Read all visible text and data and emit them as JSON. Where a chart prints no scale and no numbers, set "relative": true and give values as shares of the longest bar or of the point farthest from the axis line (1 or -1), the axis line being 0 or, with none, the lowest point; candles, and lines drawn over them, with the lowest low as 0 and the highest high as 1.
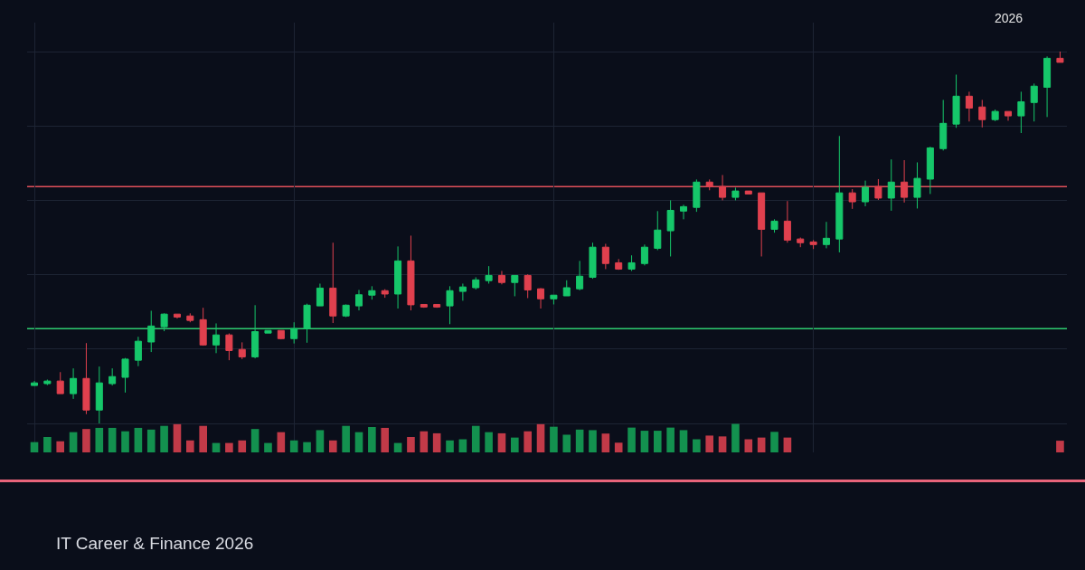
{
  "chart_data": [
    {
      "type": "candlestick",
      "relative": true,
      "grid": true,
      "annotations": [
        "2026",
        "IT Career & Finance 2026"
      ],
      "categories": [
        null,
        null,
        null,
        null,
        null,
        null,
        null,
        null,
        null,
        null,
        null,
        null,
        null,
        null,
        null,
        null,
        null,
        null,
        null,
        null,
        null,
        null,
        null,
        null,
        null,
        null,
        null,
        null,
        null,
        null,
        null,
        null,
        null,
        null,
        null,
        null,
        null,
        null,
        null,
        null,
        null,
        null,
        null,
        null,
        null,
        null,
        null,
        null,
        null,
        null,
        null,
        null,
        null,
        null,
        null,
        null,
        null,
        null,
        null,
        null,
        null,
        null,
        null,
        null,
        null,
        null,
        null,
        null,
        null,
        null,
        null,
        null,
        null,
        null,
        null,
        null,
        null,
        null,
        null,
        null
      ],
      "ohlc": [
        [
          0.102,
          0.114,
          0.101,
          0.109
        ],
        [
          0.107,
          0.118,
          0.103,
          0.114
        ],
        [
          0.114,
          0.138,
          0.08,
          0.08
        ],
        [
          0.08,
          0.148,
          0.066,
          0.121
        ],
        [
          0.121,
          0.216,
          0.025,
          0.036
        ],
        [
          0.036,
          0.153,
          0,
          0.109
        ],
        [
          0.107,
          0.148,
          0.102,
          0.126
        ],
        [
          0.124,
          0.176,
          0.083,
          0.173
        ],
        [
          0.17,
          0.233,
          0.154,
          0.221
        ],
        [
          0.219,
          0.303,
          0.192,
          0.262
        ],
        [
          0.26,
          0.296,
          0.248,
          0.294
        ],
        [
          0.294,
          0.294,
          0.282,
          0.286
        ],
        [
          0.289,
          0.296,
          0.272,
          0.277
        ],
        [
          0.279,
          0.311,
          0.209,
          0.211
        ],
        [
          0.211,
          0.269,
          0.189,
          0.238
        ],
        [
          0.238,
          0.242,
          0.17,
          0.196
        ],
        [
          0.199,
          0.218,
          0.173,
          0.179
        ],
        [
          0.179,
          0.318,
          0.175,
          0.247
        ],
        [
          0.243,
          0.25,
          0.243,
          0.25
        ],
        [
          0.25,
          0.25,
          0.226,
          0.228
        ],
        [
          0.228,
          0.272,
          0.215,
          0.255
        ],
        [
          0.255,
          0.322,
          0.217,
          0.318
        ],
        [
          0.316,
          0.376,
          0.316,
          0.364
        ],
        [
          0.364,
          0.486,
          0.27,
          0.289
        ],
        [
          0.289,
          0.32,
          0.286,
          0.318
        ],
        [
          0.316,
          0.359,
          0.304,
          0.346
        ],
        [
          0.345,
          0.369,
          0.333,
          0.357
        ],
        [
          0.357,
          0.361,
          0.338,
          0.348
        ],
        [
          0.348,
          0.476,
          0.309,
          0.437
        ],
        [
          0.437,
          0.505,
          0.304,
          0.319
        ],
        [
          0.32,
          0.32,
          0.311,
          0.313
        ],
        [
          0.32,
          0.32,
          0.311,
          0.313
        ],
        [
          0.316,
          0.369,
          0.267,
          0.357
        ],
        [
          0.355,
          0.376,
          0.33,
          0.367
        ],
        [
          0.365,
          0.393,
          0.36,
          0.386
        ],
        [
          0.384,
          0.423,
          0.376,
          0.398
        ],
        [
          0.398,
          0.41,
          0.374,
          0.379
        ],
        [
          0.379,
          0.398,
          0.342,
          0.398
        ],
        [
          0.398,
          0.401,
          0.337,
          0.359
        ],
        [
          0.362,
          0.364,
          0.309,
          0.335
        ],
        [
          0.335,
          0.345,
          0.32,
          0.345
        ],
        [
          0.343,
          0.385,
          0.343,
          0.365
        ],
        [
          0.362,
          0.437,
          0.358,
          0.396
        ],
        [
          0.393,
          0.486,
          0.389,
          0.474
        ],
        [
          0.474,
          0.483,
          0.415,
          0.43
        ],
        [
          0.432,
          0.442,
          0.413,
          0.415
        ],
        [
          0.415,
          0.452,
          0.41,
          0.432
        ],
        [
          0.43,
          0.481,
          0.425,
          0.474
        ],
        [
          0.471,
          0.571,
          0.466,
          0.52
        ],
        [
          0.518,
          0.6,
          0.449,
          0.573
        ],
        [
          0.571,
          0.588,
          0.549,
          0.583
        ],
        [
          0.581,
          0.656,
          0.569,
          0.649
        ],
        [
          0.649,
          0.656,
          0.627,
          0.637
        ],
        [
          0.637,
          0.668,
          0.6,
          0.608
        ],
        [
          0.608,
          0.634,
          0.6,
          0.625
        ],
        [
          0.625,
          0.625,
          0.617,
          0.617
        ],
        [
          0.62,
          0.62,
          0.449,
          0.522
        ],
        [
          0.522,
          0.549,
          0.513,
          0.544
        ],
        [
          0.544,
          0.598,
          0.486,
          0.493
        ],
        [
          0.496,
          0.5,
          0.474,
          0.486
        ],
        [
          0.488,
          0.493,
          0.469,
          0.481
        ],
        [
          0.481,
          0.542,
          0.471,
          0.498
        ],
        [
          0.496,
          0.773,
          0.46,
          0.62
        ],
        [
          0.62,
          0.63,
          0.577,
          0.596
        ],
        [
          0.596,
          0.653,
          0.584,
          0.635
        ],
        [
          0.637,
          0.657,
          0.601,
          0.606
        ],
        [
          0.606,
          0.71,
          0.572,
          0.649
        ],
        [
          0.649,
          0.708,
          0.594,
          0.608
        ],
        [
          0.608,
          0.702,
          0.578,
          0.659
        ],
        [
          0.657,
          0.744,
          0.617,
          0.741
        ],
        [
          0.739,
          0.87,
          0.734,
          0.807
        ],
        [
          0.805,
          0.938,
          0.795,
          0.88
        ],
        [
          0.88,
          0.892,
          0.812,
          0.848
        ],
        [
          0.851,
          0.87,
          0.796,
          0.817
        ],
        [
          0.817,
          0.844,
          0.813,
          0.839
        ],
        [
          0.839,
          0.839,
          0.814,
          0.827
        ],
        [
          0.827,
          0.892,
          0.781,
          0.865
        ],
        [
          0.863,
          0.914,
          0.812,
          0.907
        ],
        [
          0.904,
          0.987,
          0.824,
          0.982
        ],
        [
          0.982,
          1,
          0.971,
          0.971
        ]
      ],
      "ref_lines": [
        {
          "axis": "y",
          "value": 0.637,
          "color": "#e0505a"
        },
        {
          "axis": "y",
          "value": 0.255,
          "color": "#2ecc71"
        }
      ]
    },
    {
      "type": "bar",
      "relative": true,
      "categories": [
        null,
        null,
        null,
        null,
        null,
        null,
        null,
        null,
        null,
        null,
        null,
        null,
        null,
        null,
        null,
        null,
        null,
        null,
        null,
        null,
        null,
        null,
        null,
        null,
        null,
        null,
        null,
        null,
        null,
        null,
        null,
        null,
        null,
        null,
        null,
        null,
        null,
        null,
        null,
        null,
        null,
        null,
        null,
        null,
        null,
        null,
        null,
        null,
        null,
        null,
        null,
        null,
        null,
        null,
        null,
        null,
        null,
        null,
        null,
        null,
        null,
        null,
        null,
        null,
        null,
        null,
        null,
        null,
        null,
        null,
        null,
        null,
        null,
        null,
        null,
        null,
        null,
        null,
        null,
        null
      ],
      "values": [
        0.36,
        0.54,
        0.39,
        0.71,
        0.82,
        0.86,
        0.86,
        0.74,
        0.86,
        0.8,
        0.93,
        0.99,
        0.42,
        0.93,
        0.33,
        0.33,
        0.42,
        0.82,
        0.33,
        0.71,
        0.42,
        0.36,
        0.78,
        0.42,
        0.93,
        0.71,
        0.89,
        0.86,
        0.33,
        0.54,
        0.74,
        0.67,
        0.42,
        0.46,
        0.93,
        0.71,
        0.67,
        0.52,
        0.74,
        0.99,
        0.9,
        0.62,
        0.8,
        0.78,
        0.66,
        0.34,
        0.87,
        0.76,
        0.76,
        0.87,
        0.78,
        0.46,
        0.59,
        0.56,
        1,
        0.46,
        0.52,
        0.72,
        0.52,
        null,
        null,
        null,
        null,
        null,
        null,
        null,
        null,
        null,
        null,
        null,
        null,
        null,
        null,
        null,
        null,
        null,
        null,
        null,
        null,
        0.41
      ],
      "colors": [
        "#13914f",
        "#13914f",
        "#c23a48",
        "#13914f",
        "#c23a48",
        "#13914f",
        "#13914f",
        "#13914f",
        "#13914f",
        "#13914f",
        "#13914f",
        "#c23a48",
        "#c23a48",
        "#c23a48",
        "#13914f",
        "#c23a48",
        "#c23a48",
        "#13914f",
        "#13914f",
        "#c23a48",
        "#13914f",
        "#13914f",
        "#13914f",
        "#c23a48",
        "#13914f",
        "#13914f",
        "#13914f",
        "#c23a48",
        "#13914f",
        "#c23a48",
        "#c23a48",
        "#c23a48",
        "#13914f",
        "#13914f",
        "#13914f",
        "#13914f",
        "#c23a48",
        "#13914f",
        "#c23a48",
        "#c23a48",
        "#13914f",
        "#13914f",
        "#13914f",
        "#13914f",
        "#c23a48",
        "#c23a48",
        "#13914f",
        "#13914f",
        "#13914f",
        "#13914f",
        "#13914f",
        "#13914f",
        "#c23a48",
        "#c23a48",
        "#13914f",
        "#c23a48",
        "#c23a48",
        "#13914f",
        "#c23a48",
        "#c23a48",
        "#c23a48",
        "#13914f",
        "#13914f",
        "#c23a48",
        "#13914f",
        "#c23a48",
        "#13914f",
        "#c23a48",
        "#13914f",
        "#13914f",
        "#13914f",
        "#13914f",
        "#c23a48",
        "#c23a48",
        "#13914f",
        "#c23a48",
        "#13914f",
        "#13914f",
        "#13914f",
        "#c23a48"
      ]
    }
  ]
}
